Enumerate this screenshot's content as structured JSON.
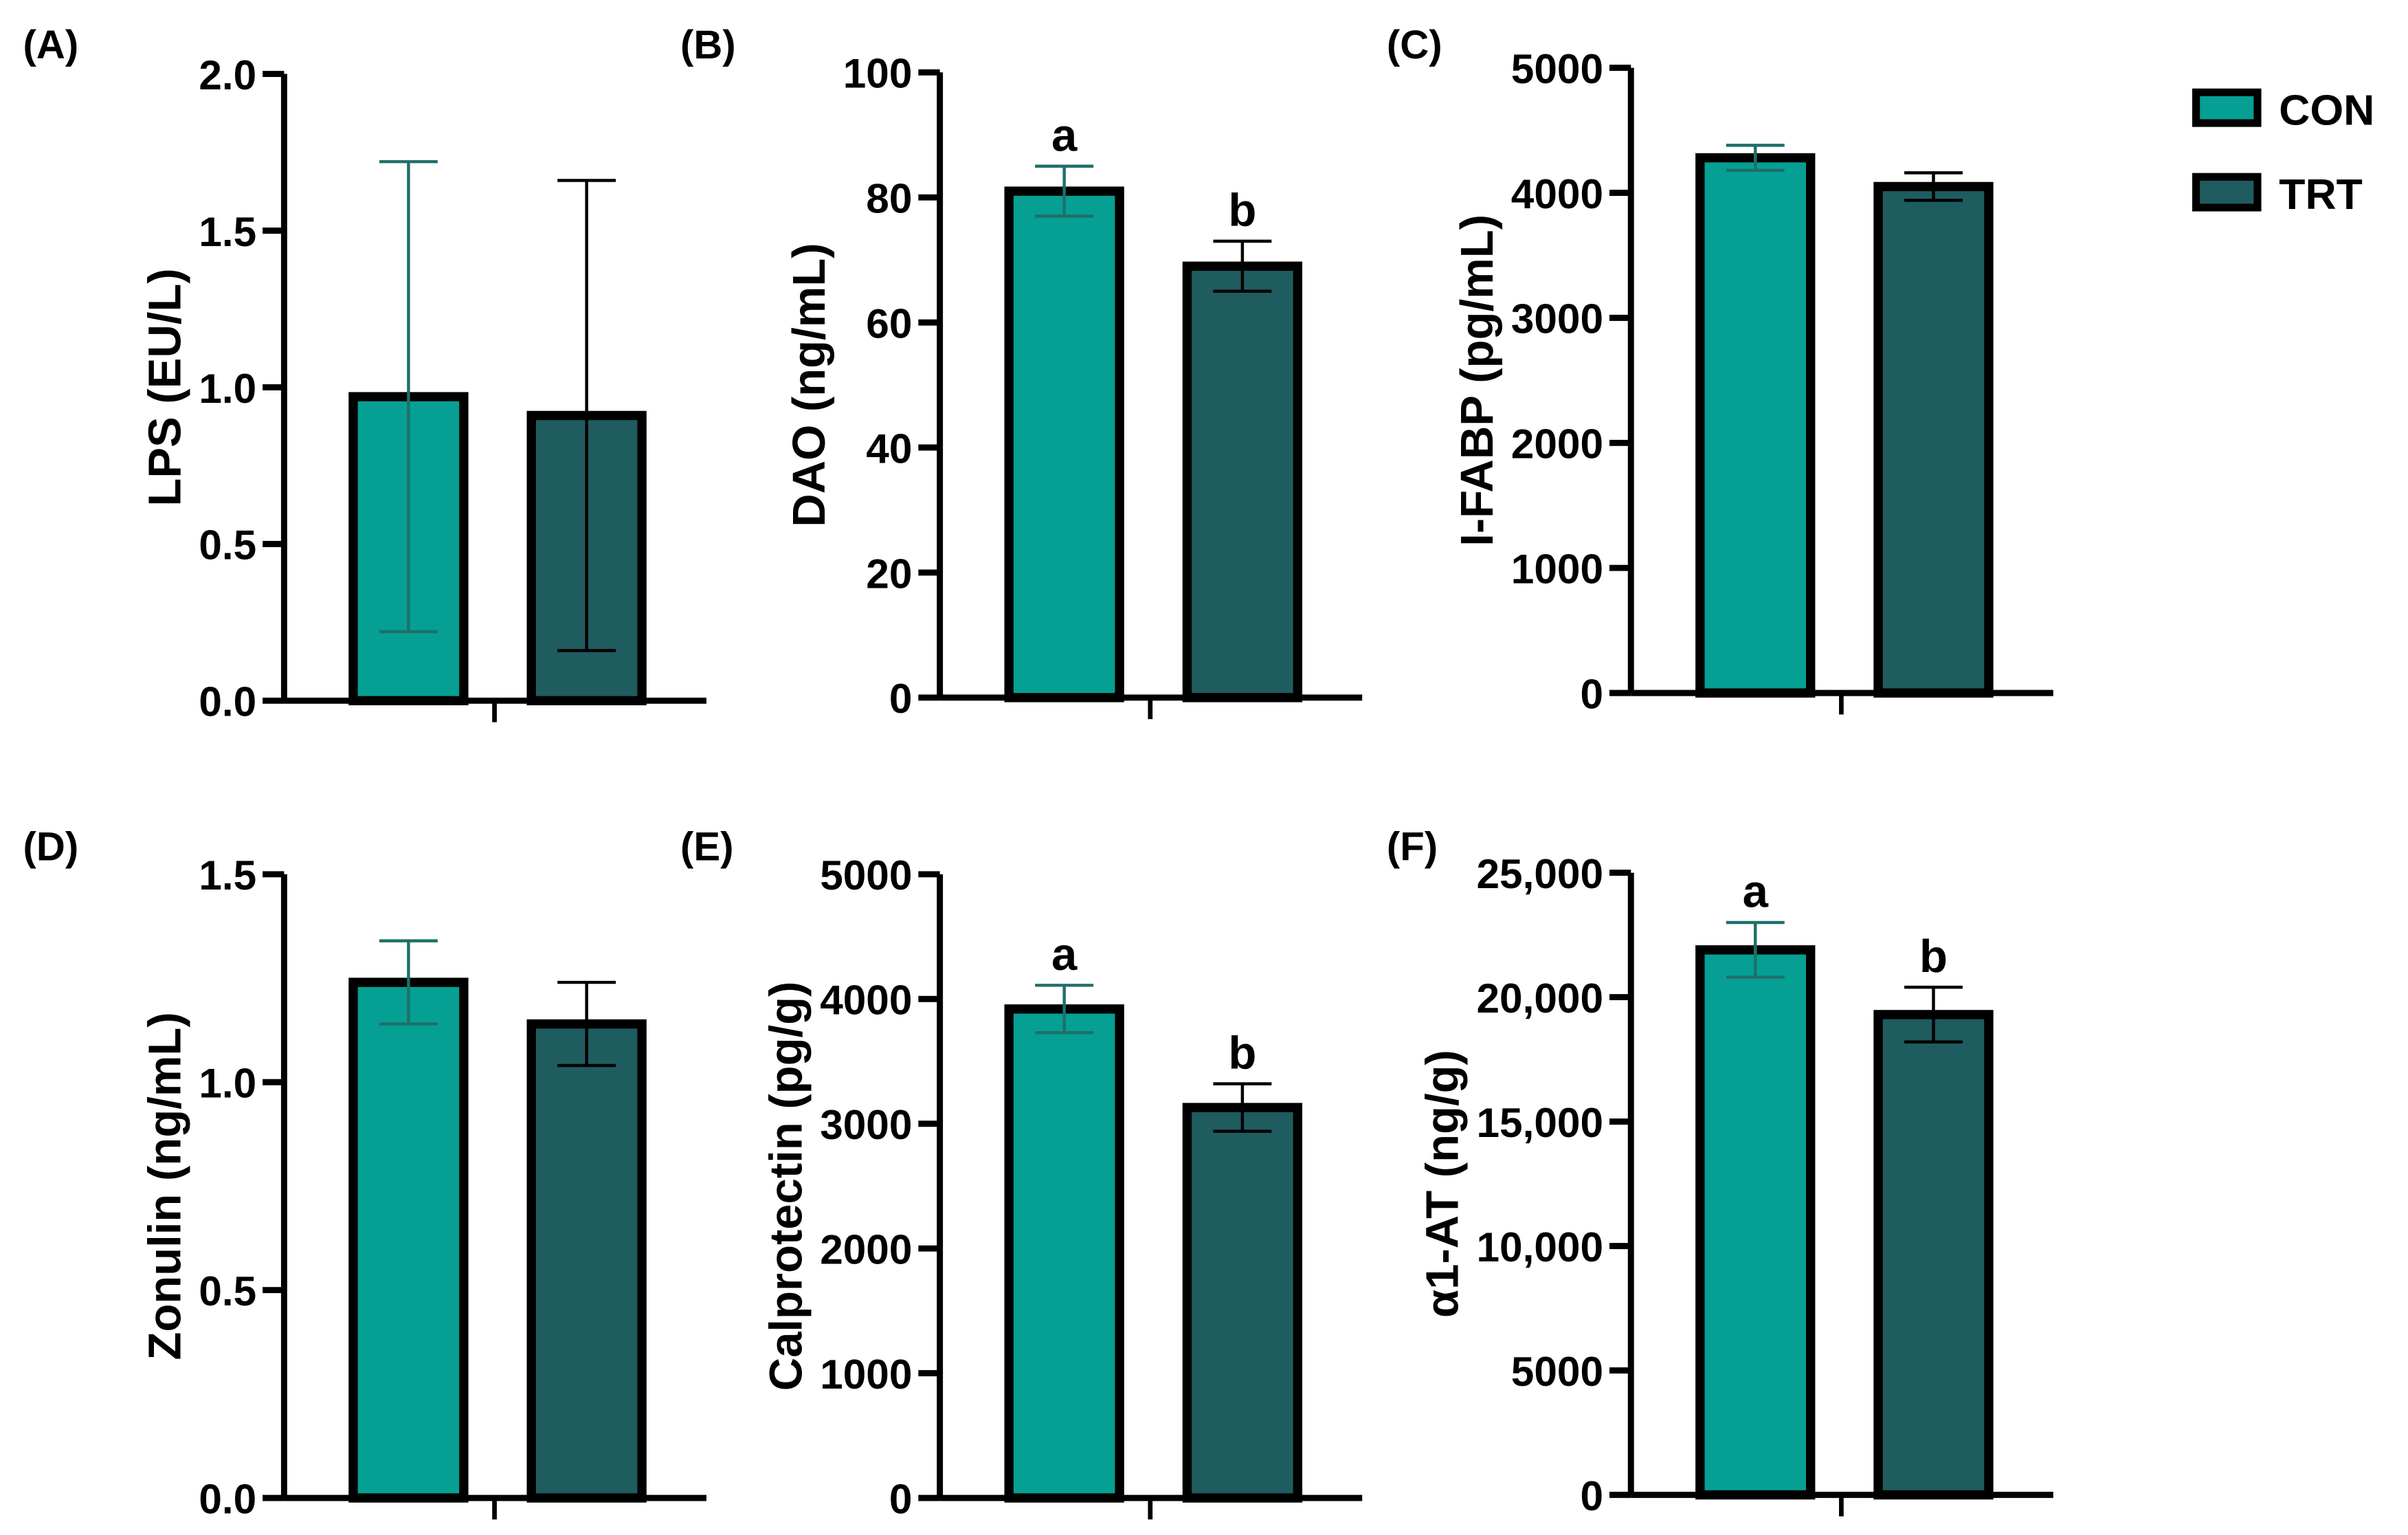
{
  "legend": {
    "placement": "top-right",
    "items": [
      {
        "label": "CON",
        "color": "#05a093"
      },
      {
        "label": "TRT",
        "color": "#1e5c60"
      }
    ]
  },
  "chart_data": [
    {
      "type": "bar",
      "panel": "(A)",
      "ylabel": "LPS  (EU/L)",
      "ylim": [
        0,
        2.0
      ],
      "ticks": [
        "0.0",
        "0.5",
        "1.0",
        "1.5",
        "2.0"
      ],
      "tick_values": [
        0,
        0.5,
        1.0,
        1.5,
        2.0
      ],
      "series": [
        {
          "name": "CON",
          "value": 0.97,
          "error": 0.75,
          "letter": ""
        },
        {
          "name": "TRT",
          "value": 0.91,
          "error": 0.75,
          "letter": ""
        }
      ]
    },
    {
      "type": "bar",
      "panel": "(B)",
      "ylabel": "DAO (ng/mL)",
      "ylim": [
        0,
        100
      ],
      "ticks": [
        "0",
        "20",
        "40",
        "60",
        "80",
        "100"
      ],
      "tick_values": [
        0,
        20,
        40,
        60,
        80,
        100
      ],
      "series": [
        {
          "name": "CON",
          "value": 81,
          "error": 4,
          "letter": "a"
        },
        {
          "name": "TRT",
          "value": 69,
          "error": 4,
          "letter": "b"
        }
      ]
    },
    {
      "type": "bar",
      "panel": "(C)",
      "ylabel": "I-FABP (pg/mL)",
      "ylim": [
        0,
        5000
      ],
      "ticks": [
        "0",
        "1000",
        "2000",
        "3000",
        "4000",
        "5000"
      ],
      "tick_values": [
        0,
        1000,
        2000,
        3000,
        4000,
        5000
      ],
      "series": [
        {
          "name": "CON",
          "value": 4280,
          "error": 100,
          "letter": ""
        },
        {
          "name": "TRT",
          "value": 4050,
          "error": 110,
          "letter": ""
        }
      ]
    },
    {
      "type": "bar",
      "panel": "(D)",
      "ylabel": "Zonulin (ng/mL)",
      "ylim": [
        0,
        1.5
      ],
      "ticks": [
        "0.0",
        "0.5",
        "1.0",
        "1.5"
      ],
      "tick_values": [
        0,
        0.5,
        1.0,
        1.5
      ],
      "series": [
        {
          "name": "CON",
          "value": 1.24,
          "error": 0.1,
          "letter": ""
        },
        {
          "name": "TRT",
          "value": 1.14,
          "error": 0.1,
          "letter": ""
        }
      ]
    },
    {
      "type": "bar",
      "panel": "(E)",
      "ylabel": "Calprotectin (pg/g)",
      "ylim": [
        0,
        5000
      ],
      "ticks": [
        "0",
        "1000",
        "2000",
        "3000",
        "4000",
        "5000"
      ],
      "tick_values": [
        0,
        1000,
        2000,
        3000,
        4000,
        5000
      ],
      "series": [
        {
          "name": "CON",
          "value": 3920,
          "error": 190,
          "letter": "a"
        },
        {
          "name": "TRT",
          "value": 3130,
          "error": 190,
          "letter": "b"
        }
      ]
    },
    {
      "type": "bar",
      "panel": "(F)",
      "ylabel": "α1-AT (ng/g)",
      "ylim": [
        0,
        25000
      ],
      "ticks": [
        "0",
        "5000",
        "10,000",
        "15,000",
        "20,000",
        "25,000"
      ],
      "tick_values": [
        0,
        5000,
        10000,
        15000,
        20000,
        25000
      ],
      "series": [
        {
          "name": "CON",
          "value": 21900,
          "error": 1100,
          "letter": "a"
        },
        {
          "name": "TRT",
          "value": 19300,
          "error": 1100,
          "letter": "b"
        }
      ]
    }
  ]
}
